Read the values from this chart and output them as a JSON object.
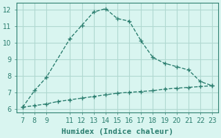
{
  "xlabel": "Humidex (Indice chaleur)",
  "ylabel": "",
  "line1_x": [
    7,
    8,
    9,
    11,
    12,
    13,
    14,
    15,
    16,
    17,
    18,
    19,
    20,
    21,
    22,
    23
  ],
  "line1_y": [
    6.1,
    7.1,
    7.9,
    10.25,
    11.05,
    11.85,
    12.05,
    11.45,
    11.3,
    10.1,
    9.1,
    8.75,
    8.55,
    8.35,
    7.65,
    7.4
  ],
  "line2_x": [
    7,
    8,
    9,
    10,
    11,
    12,
    13,
    14,
    15,
    16,
    17,
    18,
    19,
    20,
    21,
    22,
    23
  ],
  "line2_y": [
    6.1,
    6.2,
    6.3,
    6.45,
    6.55,
    6.65,
    6.75,
    6.85,
    6.95,
    7.0,
    7.05,
    7.1,
    7.2,
    7.25,
    7.3,
    7.35,
    7.4
  ],
  "line_color": "#2a7d6e",
  "bg_color": "#d9f5f0",
  "grid_color": "#b0d8d0",
  "xlim": [
    6.5,
    23.5
  ],
  "ylim": [
    5.8,
    12.4
  ],
  "xticks": [
    7,
    8,
    9,
    11,
    12,
    13,
    14,
    15,
    16,
    17,
    18,
    19,
    20,
    21,
    22,
    23
  ],
  "yticks": [
    6,
    7,
    8,
    9,
    10,
    11,
    12
  ],
  "tick_fontsize": 7,
  "xlabel_fontsize": 8
}
